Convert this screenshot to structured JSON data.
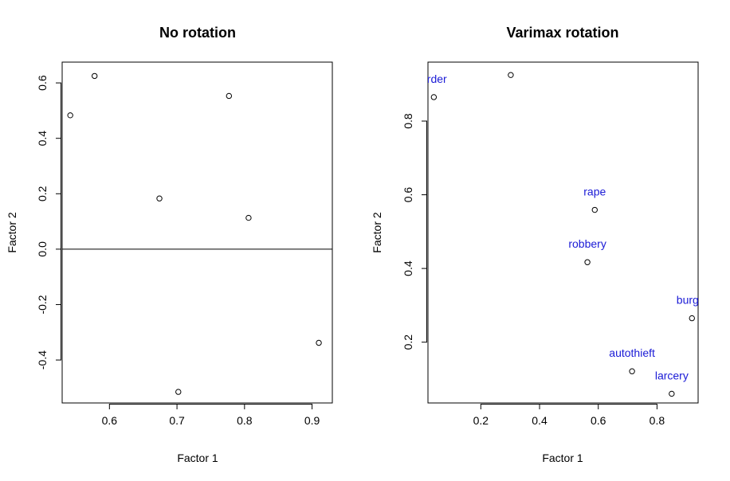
{
  "chart_data": [
    {
      "type": "scatter",
      "title": "No rotation",
      "xlabel": "Factor 1",
      "ylabel": "Factor 2",
      "xlim": [
        0.53,
        0.93
      ],
      "ylim": [
        -0.555,
        0.675
      ],
      "xticks": [
        "0.6",
        "0.7",
        "0.8",
        "0.9"
      ],
      "yticks": [
        "-0.4",
        "-0.2",
        "0.0",
        "0.2",
        "0.4",
        "0.6"
      ],
      "hline": 0,
      "points": [
        {
          "x": 0.542,
          "y": 0.483
        },
        {
          "x": 0.578,
          "y": 0.625
        },
        {
          "x": 0.674,
          "y": 0.183
        },
        {
          "x": 0.777,
          "y": 0.553
        },
        {
          "x": 0.806,
          "y": 0.113
        },
        {
          "x": 0.91,
          "y": -0.338
        },
        {
          "x": 0.702,
          "y": -0.515
        }
      ]
    },
    {
      "type": "scatter",
      "title": "Varimax rotation",
      "xlabel": "Factor 1",
      "ylabel": "Factor 2",
      "xlim": [
        0.02,
        0.94
      ],
      "ylim": [
        0.035,
        0.96
      ],
      "xticks": [
        "0.2",
        "0.4",
        "0.6",
        "0.8"
      ],
      "yticks": [
        "0.2",
        "0.4",
        "0.6",
        "0.8"
      ],
      "points": [
        {
          "x": 0.04,
          "y": 0.865,
          "label": "urder"
        },
        {
          "x": 0.302,
          "y": 0.925,
          "label": ""
        },
        {
          "x": 0.588,
          "y": 0.559,
          "label": "rape"
        },
        {
          "x": 0.563,
          "y": 0.417,
          "label": "robbery"
        },
        {
          "x": 0.919,
          "y": 0.265,
          "label": "burgla"
        },
        {
          "x": 0.715,
          "y": 0.121,
          "label": "autothieft"
        },
        {
          "x": 0.85,
          "y": 0.06,
          "label": "larcery"
        }
      ]
    }
  ]
}
